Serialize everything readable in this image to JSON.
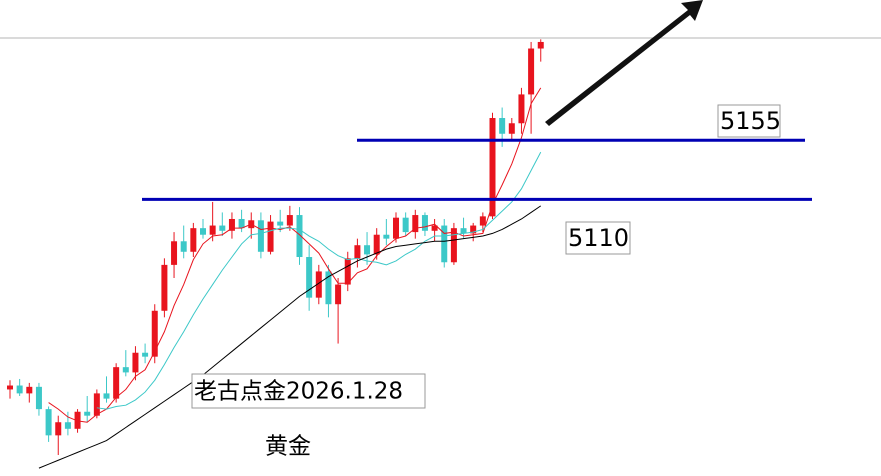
{
  "chart_data": {
    "type": "candlestick",
    "annotations": [
      "老古点金2026.1.28",
      "黄金"
    ],
    "levels": [
      5155,
      5110
    ],
    "level_color": "#0000b4",
    "up_color": "#e8141e",
    "down_color": "#3cc8c8",
    "ylim": [
      4899,
      5262
    ],
    "open": [
      4965,
      4968,
      4962,
      4967,
      4950,
      4930,
      4940,
      4935,
      4948,
      4945,
      4962,
      4958,
      4982,
      4978,
      4993,
      4990,
      5025,
      5060,
      5078,
      5070,
      5088,
      5083,
      5090,
      5086,
      5095,
      5088,
      5094,
      5070,
      5093,
      5090,
      5098,
      5066,
      5035,
      5055,
      5030,
      5045,
      5065,
      5075,
      5068,
      5083,
      5080,
      5096,
      5085,
      5098,
      5086,
      5090,
      5062,
      5088,
      5084,
      5090,
      5097,
      5172,
      5160,
      5168,
      5190,
      5225
    ],
    "high": [
      4972,
      4973,
      4970,
      4970,
      4952,
      4945,
      4948,
      4950,
      4960,
      4965,
      4975,
      4985,
      4995,
      4998,
      5000,
      5030,
      5065,
      5085,
      5090,
      5092,
      5095,
      5108,
      5100,
      5100,
      5102,
      5100,
      5100,
      5098,
      5102,
      5105,
      5104,
      5075,
      5060,
      5060,
      5050,
      5070,
      5080,
      5085,
      5088,
      5095,
      5100,
      5100,
      5102,
      5100,
      5095,
      5095,
      5092,
      5096,
      5092,
      5100,
      5176,
      5180,
      5172,
      5195,
      5230,
      5232
    ],
    "low": [
      4958,
      4960,
      4955,
      4945,
      4925,
      4915,
      4930,
      4932,
      4940,
      4943,
      4955,
      4955,
      4975,
      4972,
      4985,
      4985,
      5020,
      5050,
      5065,
      5066,
      5080,
      5078,
      5082,
      5080,
      5085,
      5080,
      5065,
      5068,
      5085,
      5086,
      5060,
      5025,
      5030,
      5020,
      5000,
      5040,
      5058,
      5060,
      5064,
      5075,
      5077,
      5082,
      5080,
      5082,
      5078,
      5058,
      5060,
      5080,
      5078,
      5085,
      5095,
      5150,
      5155,
      5160,
      5160,
      5215
    ],
    "close": [
      4968,
      4962,
      4967,
      4950,
      4930,
      4940,
      4935,
      4948,
      4945,
      4962,
      4958,
      4982,
      4978,
      4993,
      4990,
      5025,
      5060,
      5078,
      5070,
      5088,
      5083,
      5090,
      5086,
      5095,
      5088,
      5094,
      5070,
      5093,
      5090,
      5098,
      5066,
      5035,
      5055,
      5030,
      5045,
      5065,
      5075,
      5068,
      5083,
      5080,
      5096,
      5085,
      5098,
      5086,
      5090,
      5062,
      5088,
      5084,
      5090,
      5097,
      5172,
      5160,
      5168,
      5190,
      5225,
      5230
    ],
    "series": [
      {
        "color": "#e8141e",
        "values": [
          null,
          null,
          null,
          null,
          4955,
          4950,
          4944,
          4941,
          4940,
          4946,
          4950,
          4959,
          4965,
          4975,
          4980,
          4994,
          5009,
          5029,
          5045,
          5064,
          5076,
          5082,
          5083,
          5088,
          5088,
          5091,
          5087,
          5088,
          5087,
          5089,
          5083,
          5076,
          5069,
          5057,
          5046,
          5046,
          5054,
          5057,
          5067,
          5074,
          5080,
          5082,
          5088,
          5089,
          5091,
          5084,
          5085,
          5082,
          5083,
          5084,
          5106,
          5121,
          5137,
          5157,
          5183,
          5195
        ]
      },
      {
        "color": "#3cc8c8",
        "values": [
          null,
          null,
          null,
          null,
          null,
          null,
          null,
          null,
          null,
          4951,
          4950,
          4952,
          4953,
          4957,
          4963,
          4972,
          4984,
          4997,
          5009,
          5022,
          5034,
          5045,
          5056,
          5066,
          5076,
          5083,
          5084,
          5086,
          5088,
          5088,
          5087,
          5082,
          5078,
          5072,
          5067,
          5064,
          5065,
          5063,
          5062,
          5060,
          5063,
          5068,
          5072,
          5078,
          5082,
          5082,
          5083,
          5084,
          5085,
          5087,
          5094,
          5101,
          5108,
          5118,
          5132,
          5146
        ]
      },
      {
        "color": "#000000",
        "values": [
          null,
          null,
          null,
          4905,
          4908,
          4911,
          4914,
          4917,
          4920,
          4923,
          4926,
          4931,
          4936,
          4941,
          4946,
          4951,
          4956,
          4961,
          4966,
          4971,
          4976,
          4982,
          4988,
          4994,
          5000,
          5006,
          5012,
          5018,
          5024,
          5030,
          5036,
          5041,
          5046,
          5051,
          5055,
          5059,
          5063,
          5066,
          5069,
          5072,
          5074,
          5075,
          5076,
          5077,
          5078,
          5078,
          5079,
          5080,
          5081,
          5082,
          5084,
          5087,
          5091,
          5095,
          5100,
          5105
        ]
      }
    ]
  }
}
